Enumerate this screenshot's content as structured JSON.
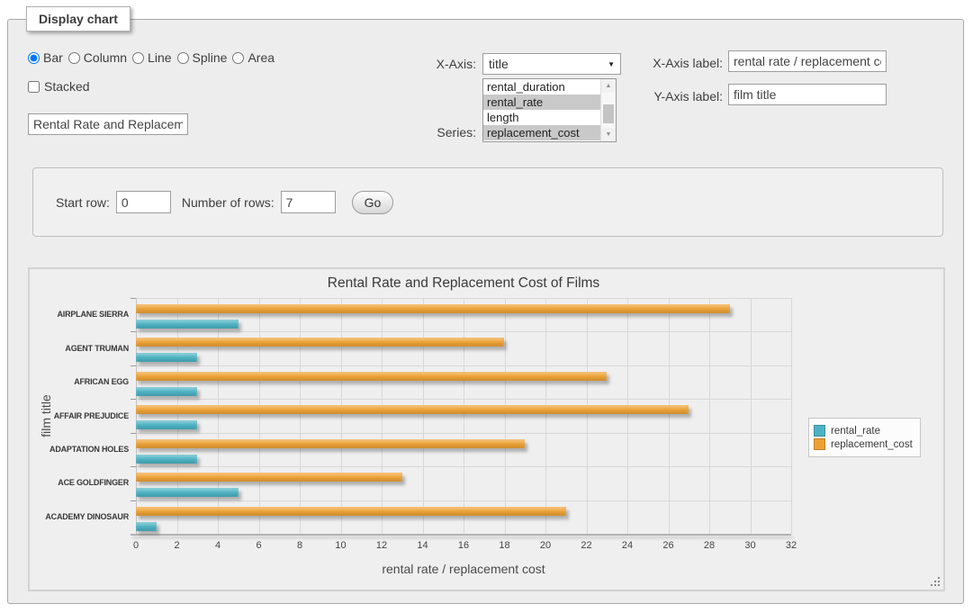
{
  "panel": {
    "legend": "Display chart"
  },
  "icons": {
    "select_arrow": "▼",
    "scroll_up": "▲",
    "scroll_down": "▼"
  },
  "form": {
    "chart_type": {
      "options": [
        {
          "label": "Bar",
          "selected": true
        },
        {
          "label": "Column",
          "selected": false
        },
        {
          "label": "Line",
          "selected": false
        },
        {
          "label": "Spline",
          "selected": false
        },
        {
          "label": "Area",
          "selected": false
        }
      ]
    },
    "stacked": {
      "label": "Stacked",
      "checked": false
    },
    "title_input": {
      "value": "Rental Rate and Replacement Cost of Films"
    },
    "xaxis": {
      "label": "X-Axis:",
      "value": "title"
    },
    "series": {
      "label": "Series:",
      "options": [
        {
          "label": "rental_duration",
          "selected": false
        },
        {
          "label": "rental_rate",
          "selected": true
        },
        {
          "label": "length",
          "selected": false
        },
        {
          "label": "replacement_cost",
          "selected": true
        }
      ]
    },
    "xaxis_label": {
      "label": "X-Axis label:",
      "value": "rental rate / replacement cost"
    },
    "yaxis_label": {
      "label": "Y-Axis label:",
      "value": "film title"
    }
  },
  "rows": {
    "start_label": "Start row:",
    "start_value": "0",
    "count_label": "Number of rows:",
    "count_value": "7",
    "go": "Go"
  },
  "chart_data": {
    "type": "bar",
    "orientation": "horizontal",
    "title": "Rental Rate and Replacement Cost of Films",
    "categories": [
      "AIRPLANE SIERRA",
      "AGENT TRUMAN",
      "AFRICAN EGG",
      "AFFAIR PREJUDICE",
      "ADAPTATION HOLES",
      "ACE GOLDFINGER",
      "ACADEMY DINOSAUR"
    ],
    "series": [
      {
        "name": "rental_rate",
        "color": "#4db3c4",
        "values": [
          4.99,
          2.99,
          2.99,
          2.99,
          2.99,
          4.99,
          0.99
        ]
      },
      {
        "name": "replacement_cost",
        "color": "#eea236",
        "values": [
          28.99,
          17.99,
          22.99,
          26.99,
          18.99,
          12.99,
          20.99
        ]
      }
    ],
    "xlabel": "rental rate / replacement cost",
    "ylabel": "film title",
    "xlim": [
      0,
      32
    ],
    "xtick_step": 2,
    "grid": true,
    "legend_position": "right"
  }
}
